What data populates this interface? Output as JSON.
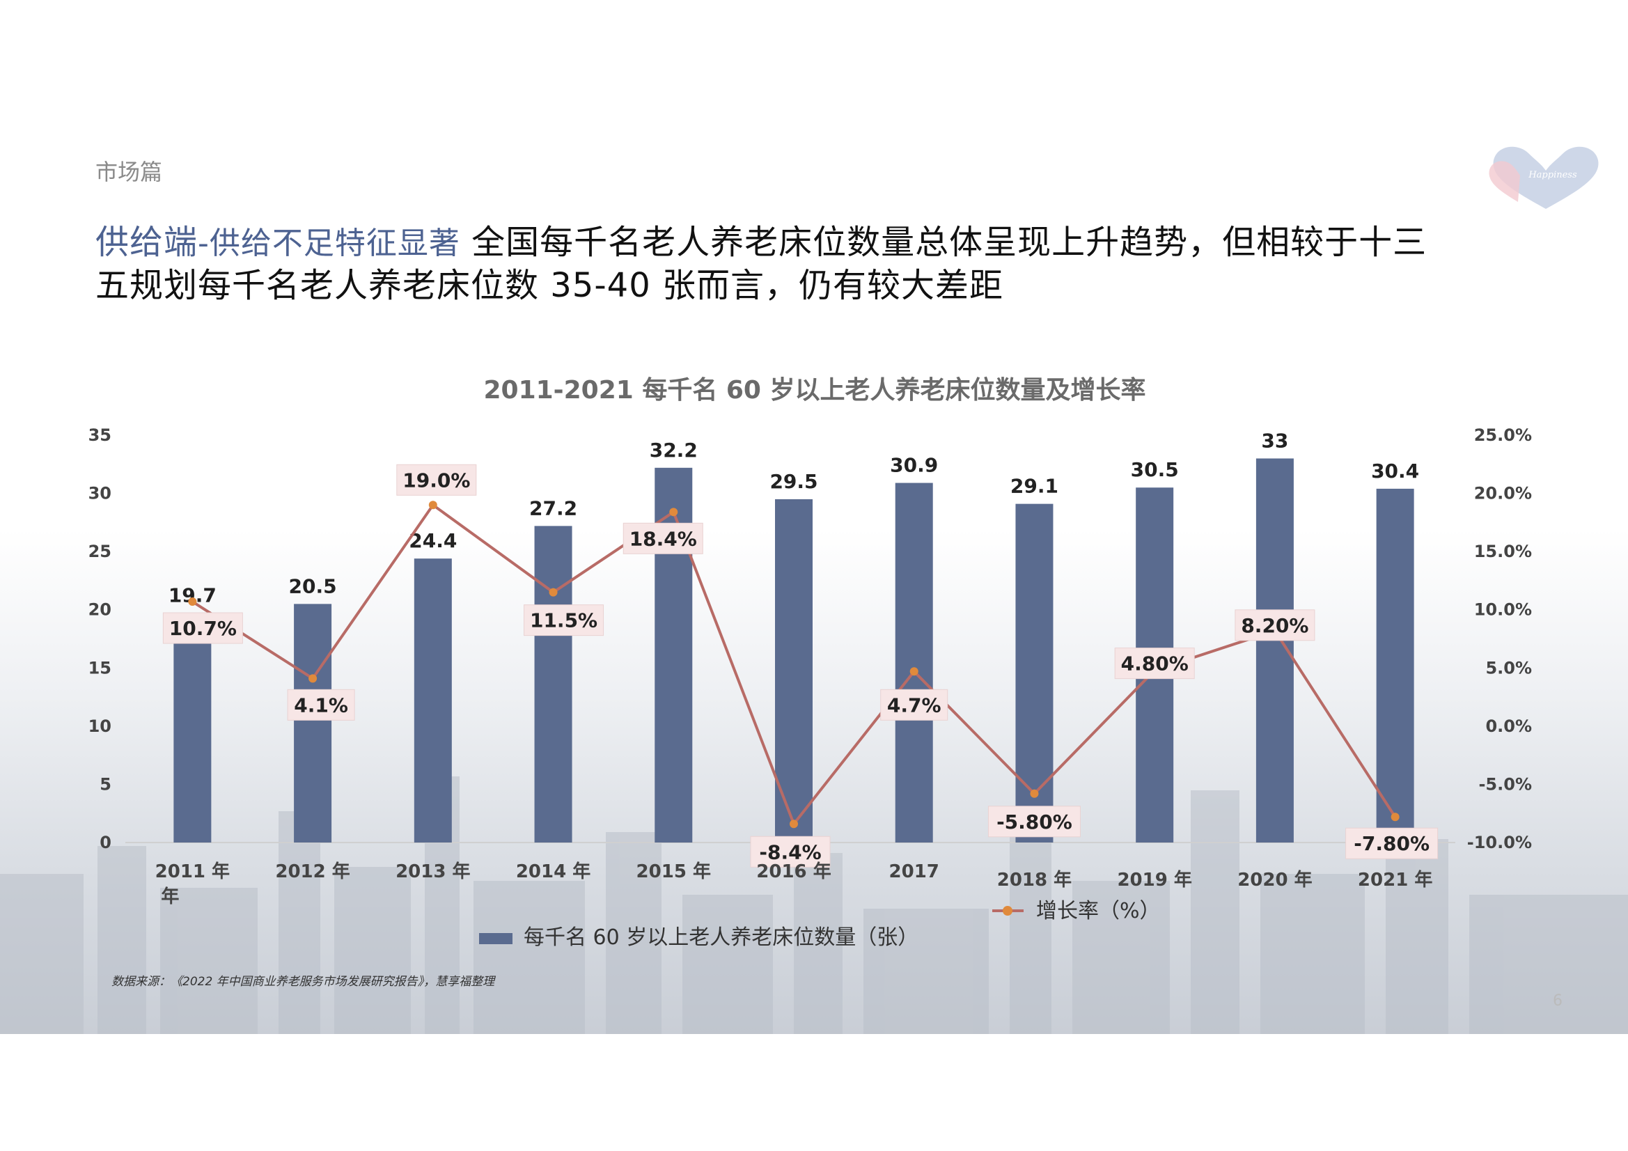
{
  "header": {
    "section": "市场篇",
    "title_accent": "供给端",
    "title_sub": "-供给不足特征显著",
    "title_rest_line1": " 全国每千名老人养老床位数量总体呈现上升趋势，但相较于十三",
    "title_rest_line2": "五规划每千名老人养老床位数 35-40 张而言，仍有较大差距"
  },
  "logo": {
    "text": "Happiness",
    "icon": "heart-logo-icon"
  },
  "footer": {
    "source": "数据来源：《2022 年中国商业养老服务市场发展研究报告》，慧享福整理",
    "page_number": "6"
  },
  "colors": {
    "bar": "#5a6b8f",
    "line": "#b86b66",
    "marker": "#e08a3c",
    "accent": "#4d6291"
  },
  "chart_data": {
    "type": "bar+line",
    "title": "2011-2021 每千名 60 岁以上老人养老床位数量及增长率",
    "categories": [
      [
        "2011 年",
        "年"
      ],
      [
        "2012 年"
      ],
      [
        "2013 年"
      ],
      [
        "2014 年"
      ],
      [
        "2015 年"
      ],
      [
        "2016 年"
      ],
      [
        "2017"
      ],
      [
        "2018 年"
      ],
      [
        "2019 年"
      ],
      [
        "2020 年"
      ],
      [
        "2021 年"
      ]
    ],
    "bars": {
      "name": "每千名 60 岁以上老人养老床位数量（张）",
      "values": [
        19.7,
        20.5,
        24.4,
        27.2,
        32.2,
        29.5,
        30.9,
        29.1,
        30.5,
        33,
        30.4
      ],
      "labels": [
        "19.7",
        "20.5",
        "24.4",
        "27.2",
        "32.2",
        "29.5",
        "30.9",
        "29.1",
        "30.5",
        "33",
        "30.4"
      ]
    },
    "line": {
      "name": "增长率（%）",
      "values": [
        10.7,
        4.1,
        19.0,
        11.5,
        18.4,
        -8.4,
        4.7,
        -5.8,
        4.8,
        8.2,
        -7.8
      ],
      "labels": [
        "10.7%",
        "4.1%",
        "19.0%",
        "11.5%",
        "18.4%",
        "-8.4%",
        "4.7%",
        "-5.80%",
        "4.80%",
        "8.20%",
        "-7.80%"
      ]
    },
    "y_left": {
      "min": 0,
      "max": 35,
      "ticks": [
        "0",
        "5",
        "10",
        "15",
        "20",
        "25",
        "30",
        "35"
      ]
    },
    "y_right": {
      "min": -10,
      "max": 25,
      "ticks": [
        "-10.0%",
        "-5.0%",
        "0.0%",
        "5.0%",
        "10.0%",
        "15.0%",
        "20.0%",
        "25.0%"
      ]
    },
    "grid": false,
    "legend": "bottom"
  }
}
